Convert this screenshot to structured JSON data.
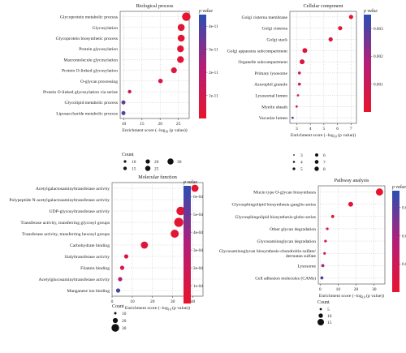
{
  "colorscale": {
    "low": "#e8142c",
    "mid": "#b41e78",
    "high": "#3b4ba6",
    "top": "#2a4fb3"
  },
  "chart_data": [
    {
      "type": "scatter",
      "subtype": "bubble",
      "title": "Biological process",
      "xlabel_main": "Enrichment score (−log",
      "xlabel_sub": "10",
      "xlabel_end": " (p value))",
      "xlim": [
        9,
        28
      ],
      "xticks": [
        10,
        15,
        20,
        25
      ],
      "grid": true,
      "colorbar": {
        "title": "p value",
        "min": 0,
        "max": 4.5e-11,
        "ticks": [
          {
            "v": 4e-11,
            "label": "4e-11"
          },
          {
            "v": 3e-11,
            "label": "3e-11"
          },
          {
            "v": 2e-11,
            "label": "2e-11"
          },
          {
            "v": 1e-11,
            "label": "1e-11"
          }
        ]
      },
      "size_legend": {
        "title": "Count",
        "min": 10,
        "max": 30,
        "items": [
          {
            "v": 10,
            "label": "10"
          },
          {
            "v": 15,
            "label": "15"
          },
          {
            "v": 20,
            "label": "20"
          },
          {
            "v": 25,
            "label": "25"
          },
          {
            "v": 30,
            "label": "30"
          }
        ]
      },
      "points": [
        {
          "term": "Glycoprotein metabolic process",
          "x": 27.2,
          "count": 30,
          "p": 1e-12
        },
        {
          "term": "Glycosylation",
          "x": 25.8,
          "count": 24,
          "p": 2e-12
        },
        {
          "term": "Glycoprotein biosynthetic process",
          "x": 25.8,
          "count": 24,
          "p": 2e-12
        },
        {
          "term": "Protein glycosylation",
          "x": 25.6,
          "count": 23,
          "p": 3e-12
        },
        {
          "term": "Macromolecule glycosylation",
          "x": 25.6,
          "count": 23,
          "p": 3e-12
        },
        {
          "term": "Protein O-linked glycosylation",
          "x": 23.8,
          "count": 19,
          "p": 5e-12
        },
        {
          "term": "O-glycan processing",
          "x": 20.1,
          "count": 14,
          "p": 8e-12
        },
        {
          "term": "Protein O-linked glycosylation via serine",
          "x": 11.6,
          "count": 8,
          "p": 1.2e-11
        },
        {
          "term": "Glycolipid metabolic process",
          "x": 9.9,
          "count": 12,
          "p": 3.8e-11
        },
        {
          "term": "Liposaccharide metabolic process",
          "x": 9.9,
          "count": 12,
          "p": 4.2e-11
        }
      ]
    },
    {
      "type": "scatter",
      "subtype": "bubble",
      "title": "Cellular component",
      "xlabel_main": "Enrichment score (−log",
      "xlabel_sub": "10",
      "xlabel_end": " (p value))",
      "xlim": [
        2.5,
        7.4
      ],
      "xticks": [
        3,
        4,
        5,
        6,
        7
      ],
      "grid": true,
      "colorbar": {
        "title": "p value",
        "min": 0,
        "max": 0.0035,
        "ticks": [
          {
            "v": 0.003,
            "label": "0.003"
          },
          {
            "v": 0.002,
            "label": "0.002"
          },
          {
            "v": 0.001,
            "label": "0.001"
          }
        ]
      },
      "size_legend": {
        "title": "",
        "min": 3,
        "max": 8,
        "items": [
          {
            "v": 3,
            "label": "3"
          },
          {
            "v": 4,
            "label": "4"
          },
          {
            "v": 5,
            "label": "5"
          },
          {
            "v": 6,
            "label": "6"
          },
          {
            "v": 7,
            "label": "7"
          },
          {
            "v": 8,
            "label": "8"
          }
        ]
      },
      "points": [
        {
          "term": "Golgi cisterna membrane",
          "x": 7.0,
          "count": 7,
          "p": 0.0001
        },
        {
          "term": "Golgi cisterna",
          "x": 6.2,
          "count": 7,
          "p": 0.0002
        },
        {
          "term": "Golgi stack",
          "x": 5.5,
          "count": 7,
          "p": 0.0003
        },
        {
          "term": "Golgi apparatus subcompartment",
          "x": 3.6,
          "count": 8,
          "p": 0.0004
        },
        {
          "term": "Organelle subcompartment",
          "x": 3.4,
          "count": 8,
          "p": 0.0005
        },
        {
          "term": "Primary lysosome",
          "x": 3.2,
          "count": 5,
          "p": 0.0008
        },
        {
          "term": "Azurophil granule",
          "x": 3.2,
          "count": 5,
          "p": 0.0009
        },
        {
          "term": "Lysosomal lumen",
          "x": 3.1,
          "count": 4,
          "p": 0.001
        },
        {
          "term": "Myelin sheath",
          "x": 3.0,
          "count": 4,
          "p": 0.0012
        },
        {
          "term": "Vacuolar lumen",
          "x": 2.7,
          "count": 4,
          "p": 0.0034
        }
      ]
    },
    {
      "type": "scatter",
      "subtype": "bubble",
      "title": "Molecular function",
      "xlabel_main": "Enrichment score (−log",
      "xlabel_sub": "10",
      "xlabel_end": " (p value))",
      "xlim": [
        0,
        45
      ],
      "xticks": [
        0,
        10,
        20,
        30,
        40
      ],
      "grid": true,
      "colorbar": {
        "title": "p value",
        "min": 0,
        "max": 0.00066,
        "ticks": [
          {
            "v": 0.0006,
            "label": "6e-04"
          },
          {
            "v": 0.0005,
            "label": "5e-04"
          },
          {
            "v": 0.0004,
            "label": "4e-04"
          },
          {
            "v": 0.0003,
            "label": "3e-04"
          },
          {
            "v": 0.0002,
            "label": "2e-04"
          },
          {
            "v": 0.0001,
            "label": "1e-04"
          }
        ]
      },
      "size_legend": {
        "title": "Count",
        "min": 10,
        "max": 30,
        "items": [
          {
            "v": 10,
            "label": "10"
          },
          {
            "v": 20,
            "label": "20"
          },
          {
            "v": 30,
            "label": "30"
          }
        ]
      },
      "points": [
        {
          "term": "Acetylgalactosaminyltransferase activity",
          "x": 41,
          "count": 22,
          "p": 1e-05
        },
        {
          "term": "Polypeptide N-acetylgalactosaminyltransferase activity",
          "x": 37,
          "count": 20,
          "p": 2e-05
        },
        {
          "term": "UDP-glycosyltransferase activity",
          "x": 34,
          "count": 28,
          "p": 3e-05
        },
        {
          "term": "Transferase activity, transferring glycosyl groups",
          "x": 33,
          "count": 30,
          "p": 3e-05
        },
        {
          "term": "Transferase activity, transferring hexosyl groups",
          "x": 31,
          "count": 26,
          "p": 4e-05
        },
        {
          "term": "Carbohydrate binding",
          "x": 16,
          "count": 22,
          "p": 6e-05
        },
        {
          "term": "Sialyltransferase activity",
          "x": 7,
          "count": 9,
          "p": 8e-05
        },
        {
          "term": "Filamin binding",
          "x": 5,
          "count": 5,
          "p": 0.0001
        },
        {
          "term": "Acetylglucosaminyltransferase activity",
          "x": 4,
          "count": 10,
          "p": 0.00032
        },
        {
          "term": "Manganese ion binding",
          "x": 3,
          "count": 10,
          "p": 0.00064
        }
      ]
    },
    {
      "type": "scatter",
      "subtype": "bubble",
      "title": "Pathway analysis",
      "xlabel_main": "Enrichment score (−log",
      "xlabel_sub": "10",
      "xlabel_end": " (p value))",
      "xlim": [
        -1,
        36
      ],
      "xticks": [
        0,
        10,
        20,
        30
      ],
      "grid": true,
      "colorbar": {
        "title": "p value",
        "min": 0,
        "max": 0.036,
        "ticks": [
          {
            "v": 0.03,
            "label": "0.03"
          },
          {
            "v": 0.02,
            "label": "0.02"
          },
          {
            "v": 0.01,
            "label": "0.01"
          }
        ]
      },
      "size_legend": {
        "title": "Count",
        "min": 5,
        "max": 15,
        "items": [
          {
            "v": 5,
            "label": "5"
          },
          {
            "v": 10,
            "label": "10"
          },
          {
            "v": 15,
            "label": "15"
          }
        ]
      },
      "points": [
        {
          "term": "Mucin type O-glycan biosynthesis",
          "x": 33,
          "count": 15,
          "p": 0.0005
        },
        {
          "term": "Glycosphingolipid biosynthesis-ganglio series",
          "x": 17,
          "count": 10,
          "p": 0.002
        },
        {
          "term": "Glycosphingolipid biosynthesis-globo series",
          "x": 7,
          "count": 6,
          "p": 0.004
        },
        {
          "term": "Other glycan degradation",
          "x": 4,
          "count": 4,
          "p": 0.005
        },
        {
          "term": "Glycosaminoglycan degradation",
          "x": 3,
          "count": 5,
          "p": 0.006
        },
        {
          "term": "Glycosaminoglycan biosynthesis-chondroitin sulfate/\ndermatan sulfate",
          "x": 2.5,
          "count": 3,
          "p": 0.01
        },
        {
          "term": "Lysosome",
          "x": 1.5,
          "count": 6,
          "p": 0.02
        },
        {
          "term": "Cell adhesion molecules (CAMs)",
          "x": 1,
          "count": 6,
          "p": 0.034
        }
      ]
    }
  ]
}
